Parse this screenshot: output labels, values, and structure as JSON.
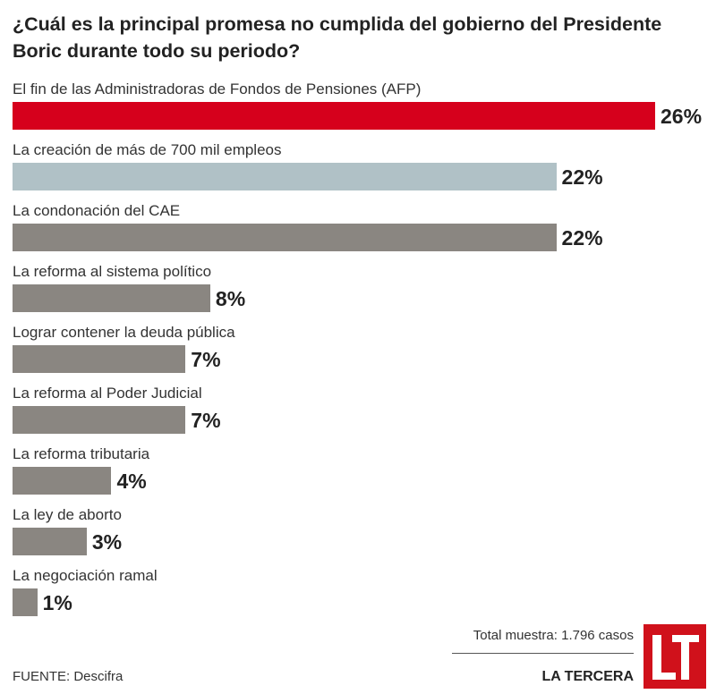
{
  "chart_data": {
    "type": "bar",
    "orientation": "horizontal",
    "title": "¿Cuál es la principal promesa no cumplida del gobierno del Presidente Boric durante todo su periodo?",
    "categories": [
      "El fin de las Administradoras de Fondos de Pensiones (AFP)",
      "La creación de más de 700 mil empleos",
      "La condonación del CAE",
      "La reforma al sistema político",
      "Lograr contener la deuda pública",
      "La reforma al Poder Judicial",
      "La reforma tributaria",
      "La ley de aborto",
      "La negociación ramal"
    ],
    "values": [
      26,
      22,
      22,
      8,
      7,
      7,
      4,
      3,
      1
    ],
    "value_labels": [
      "26%",
      "22%",
      "22%",
      "8%",
      "7%",
      "7%",
      "4%",
      "3%",
      "1%"
    ],
    "colors": [
      "#d6001c",
      "#b0c1c6",
      "#8a8681",
      "#8a8681",
      "#8a8681",
      "#8a8681",
      "#8a8681",
      "#8a8681",
      "#8a8681"
    ],
    "xlim": [
      0,
      26
    ],
    "grid": false,
    "xlabel": "",
    "ylabel": ""
  },
  "footer": {
    "total": "Total muestra: 1.796 casos",
    "source": "FUENTE: Descifra",
    "brand": "LA TERCERA",
    "logo_text": "LT"
  }
}
